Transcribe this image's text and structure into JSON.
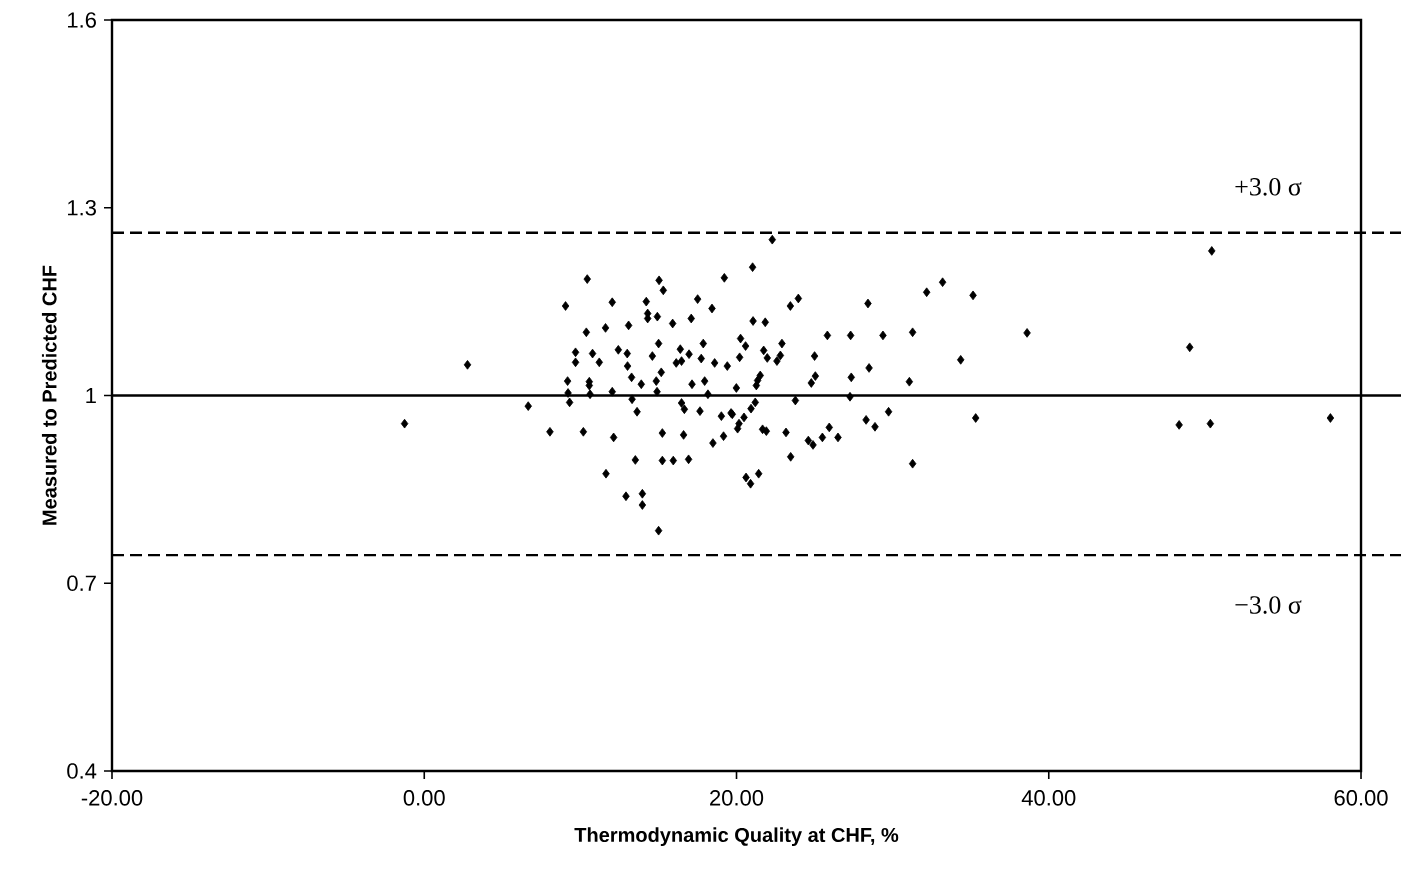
{
  "chart_data": {
    "type": "scatter",
    "xlabel": "Thermodynamic Quality at CHF, %",
    "ylabel": "Measured to Predicted CHF",
    "xlim": [
      -20,
      60
    ],
    "ylim": [
      0.4,
      1.6
    ],
    "xticks": [
      {
        "value": -20,
        "label": "-20.00"
      },
      {
        "value": 0,
        "label": "0.00"
      },
      {
        "value": 20,
        "label": "20.00"
      },
      {
        "value": 40,
        "label": "40.00"
      },
      {
        "value": 60,
        "label": "60.00"
      }
    ],
    "yticks": [
      0.4,
      0.7,
      1,
      1.3,
      1.6
    ],
    "grid": false,
    "marker": "diamond",
    "ref_lines": [
      {
        "axis": "y",
        "value": 1.26,
        "label": "+3.0 σ",
        "line_style": "dashed",
        "color": "#000000"
      },
      {
        "axis": "y",
        "value": 1.0,
        "line_style": "solid",
        "color": "#000000"
      },
      {
        "axis": "y",
        "value": 0.745,
        "label": "−3.0 σ",
        "line_style": "dashed",
        "color": "#000000"
      }
    ],
    "series": [
      {
        "color": "#000000",
        "x": [
          -1.26,
          2.77,
          6.66,
          8.05,
          9.05,
          9.18,
          9.21,
          9.31,
          9.69,
          9.69,
          10.19,
          10.38,
          10.44,
          10.57,
          10.57,
          10.62,
          10.78,
          11.21,
          11.61,
          11.64,
          12.04,
          12.04,
          12.13,
          12.43,
          12.92,
          13.0,
          13.02,
          13.09,
          13.28,
          13.31,
          13.52,
          13.63,
          13.9,
          13.97,
          13.97,
          14.22,
          14.31,
          14.31,
          14.61,
          14.86,
          14.93,
          14.91,
          15.01,
          15.01,
          15.04,
          15.18,
          15.25,
          15.25,
          15.31,
          15.91,
          15.95,
          16.14,
          16.4,
          16.48,
          16.48,
          16.61,
          16.66,
          16.93,
          16.96,
          17.1,
          17.15,
          17.51,
          17.66,
          17.74,
          17.87,
          17.96,
          18.17,
          18.43,
          22.29,
          21.03,
          19.22,
          21.06,
          21.84,
          23.45,
          23.96,
          28.42,
          32.18,
          33.2,
          35.15,
          38.61,
          20.26,
          20.58,
          22.91,
          25.82,
          27.31,
          29.38,
          31.28,
          18.6,
          19.41,
          20.2,
          21.74,
          21.97,
          22.59,
          22.81,
          25.0,
          34.36,
          19.99,
          21.27,
          21.35,
          21.52,
          24.79,
          25.05,
          27.35,
          28.49,
          31.07,
          27.27,
          23.77,
          21.2,
          19.03,
          19.65,
          19.73,
          20.48,
          20.93,
          20.16,
          20.07,
          19.17,
          18.49,
          21.67,
          21.91,
          23.17,
          24.6,
          24.9,
          25.5,
          25.94,
          26.5,
          28.3,
          28.87,
          29.74,
          35.32,
          23.47,
          31.28,
          20.61,
          20.9,
          21.42,
          49.03,
          50.44,
          48.35,
          50.35,
          58.04
        ],
        "values": [
          0.955,
          1.049,
          0.983,
          0.942,
          1.143,
          1.023,
          1.004,
          0.989,
          1.069,
          1.053,
          0.942,
          1.101,
          1.186,
          1.022,
          1.016,
          1.002,
          1.067,
          1.053,
          1.108,
          0.875,
          1.149,
          1.006,
          0.933,
          1.073,
          0.839,
          1.067,
          1.047,
          1.112,
          1.029,
          0.994,
          0.897,
          0.974,
          1.018,
          0.843,
          0.825,
          1.15,
          1.131,
          1.123,
          1.063,
          1.023,
          1.126,
          1.006,
          1.083,
          0.784,
          1.184,
          1.037,
          0.94,
          0.896,
          1.168,
          1.115,
          0.896,
          1.052,
          1.074,
          1.055,
          0.988,
          0.937,
          0.978,
          0.898,
          1.066,
          1.123,
          1.018,
          1.154,
          0.975,
          1.059,
          1.083,
          1.023,
          1.002,
          1.139,
          1.249,
          1.205,
          1.188,
          1.119,
          1.117,
          1.143,
          1.155,
          1.147,
          1.165,
          1.181,
          1.16,
          1.1,
          1.091,
          1.079,
          1.083,
          1.096,
          1.096,
          1.096,
          1.101,
          1.052,
          1.047,
          1.061,
          1.072,
          1.06,
          1.055,
          1.064,
          1.063,
          1.057,
          1.012,
          1.016,
          1.024,
          1.032,
          1.02,
          1.031,
          1.029,
          1.044,
          1.022,
          0.998,
          0.992,
          0.989,
          0.967,
          0.972,
          0.97,
          0.965,
          0.979,
          0.955,
          0.947,
          0.935,
          0.924,
          0.946,
          0.943,
          0.941,
          0.928,
          0.921,
          0.933,
          0.949,
          0.933,
          0.961,
          0.95,
          0.974,
          0.964,
          0.902,
          0.891,
          0.869,
          0.859,
          0.875,
          1.077,
          1.231,
          0.953,
          0.955,
          0.964
        ]
      }
    ]
  }
}
